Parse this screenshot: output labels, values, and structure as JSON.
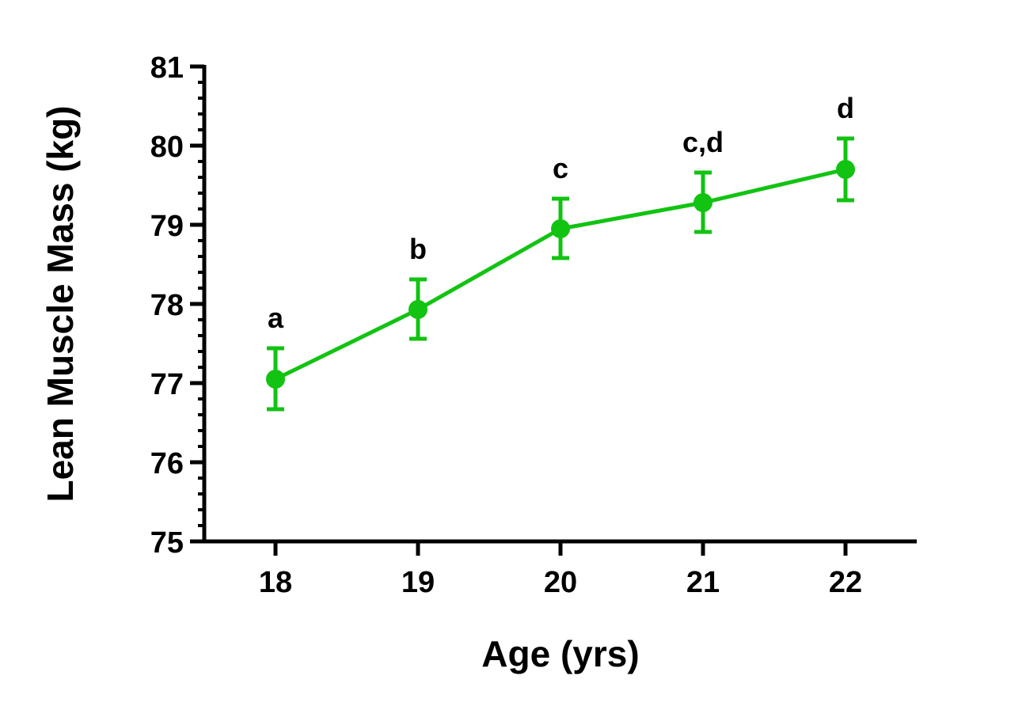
{
  "chart_data": {
    "type": "line",
    "title": "",
    "xlabel": "Age (yrs)",
    "ylabel": "Lean Muscle Mass (kg)",
    "xlim": [
      17.5,
      22.5
    ],
    "ylim": [
      75,
      81
    ],
    "x_ticks": [
      18,
      19,
      20,
      21,
      22
    ],
    "x_tick_labels": [
      "18",
      "19",
      "20",
      "21",
      "22"
    ],
    "y_ticks": [
      75,
      76,
      77,
      78,
      79,
      80,
      81
    ],
    "y_tick_labels": [
      "75",
      "76",
      "77",
      "78",
      "79",
      "80",
      "81"
    ],
    "y_minor_tick_step": 0.2,
    "grid": false,
    "legend": false,
    "color": "#12c312",
    "series": [
      {
        "x": [
          18,
          19,
          20,
          21,
          22
        ],
        "y": [
          77.05,
          77.93,
          78.95,
          79.28,
          79.7
        ],
        "error_low": [
          76.67,
          77.56,
          78.58,
          78.91,
          79.31
        ],
        "error_high": [
          77.44,
          78.31,
          79.33,
          79.66,
          80.09
        ]
      }
    ],
    "annotations": [
      "a",
      "b",
      "c",
      "c,d",
      "d"
    ]
  }
}
